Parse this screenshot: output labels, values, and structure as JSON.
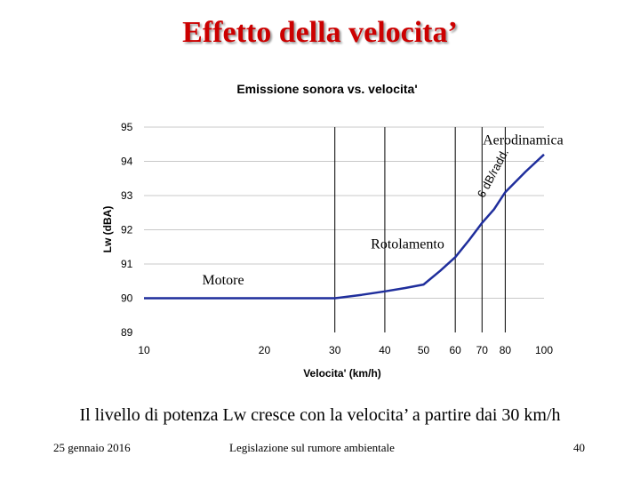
{
  "slide": {
    "title": "Effetto della velocita’",
    "caption": "Il livello di potenza Lw cresce con la velocita’ a partire dai 30 km/h",
    "footer_date": "25 gennaio 2016",
    "footer_center": "Legislazione sul rumore ambientale",
    "page_number": "40"
  },
  "chart_data": {
    "type": "line",
    "title": "Emissione sonora vs. velocita'",
    "xlabel": "Velocita' (km/h)",
    "ylabel": "Lw (dBA)",
    "x_scale": "log",
    "xlim": [
      10,
      100
    ],
    "ylim": [
      89,
      95
    ],
    "x_ticks": [
      10,
      20,
      30,
      40,
      50,
      60,
      70,
      80,
      100
    ],
    "y_ticks": [
      95,
      94,
      93,
      92,
      91,
      90,
      89
    ],
    "grid": {
      "horizontal": true,
      "vertical_at": [
        30,
        40,
        60,
        70,
        80
      ]
    },
    "series": [
      {
        "color": "#1f2e9c",
        "x": [
          10,
          15,
          20,
          25,
          30,
          35,
          40,
          45,
          50,
          55,
          60,
          65,
          70,
          75,
          80,
          90,
          100
        ],
        "y": [
          90.0,
          90.0,
          90.0,
          90.0,
          90.0,
          90.1,
          90.2,
          90.3,
          90.4,
          90.8,
          91.2,
          91.7,
          92.2,
          92.6,
          93.1,
          93.7,
          94.2
        ]
      }
    ],
    "annotations": [
      {
        "text": "Aerodinamica",
        "x": 80,
        "y": 94.5
      },
      {
        "text": "Rotolamento",
        "x": 55,
        "y": 91.45
      },
      {
        "text": "Motore",
        "x": 20,
        "y": 90.4
      },
      {
        "text": "6 dB/radd.",
        "x": 80,
        "y": 93.6,
        "rotated": true
      }
    ]
  }
}
